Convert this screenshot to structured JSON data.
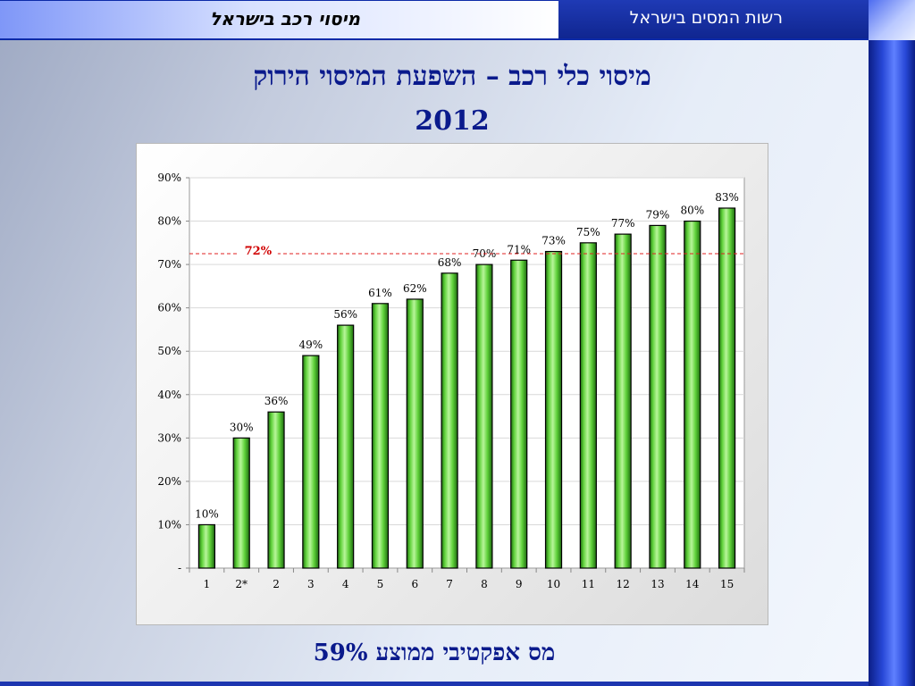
{
  "header": {
    "subject": "מיסוי רכב בישראל",
    "organization": "רשות המסים בישראל"
  },
  "slide": {
    "title": "מיסוי כלי רכב – השפעת המיסוי הירוק",
    "year": "2012",
    "footer": "מס אפקטיבי ממוצע 59%"
  },
  "colors": {
    "accent_navy": "#0a1a8c",
    "header_blue": "#1f3ab5",
    "bar_green": "#5fd13a",
    "average_line": "#e02020"
  },
  "chart_data": {
    "type": "bar",
    "categories": [
      "1",
      "2*",
      "2",
      "3",
      "4",
      "5",
      "6",
      "7",
      "8",
      "9",
      "10",
      "11",
      "12",
      "13",
      "14",
      "15"
    ],
    "values": [
      10,
      30,
      36,
      49,
      56,
      61,
      62,
      68,
      70,
      71,
      73,
      75,
      77,
      79,
      80,
      83
    ],
    "data_labels": [
      "10%",
      "30%",
      "36%",
      "49%",
      "56%",
      "61%",
      "62%",
      "68%",
      "70%",
      "71%",
      "73%",
      "75%",
      "77%",
      "79%",
      "80%",
      "83%"
    ],
    "y_ticks": [
      0,
      10,
      20,
      30,
      40,
      50,
      60,
      70,
      80,
      90
    ],
    "y_tick_labels": [
      "-",
      "10%",
      "20%",
      "30%",
      "40%",
      "50%",
      "60%",
      "70%",
      "80%",
      "90%"
    ],
    "ylim": [
      0,
      90
    ],
    "grid": true,
    "reference_line": {
      "value": 72.5,
      "label": "72%",
      "style": "dashed"
    },
    "title": "",
    "xlabel": "",
    "ylabel": ""
  }
}
